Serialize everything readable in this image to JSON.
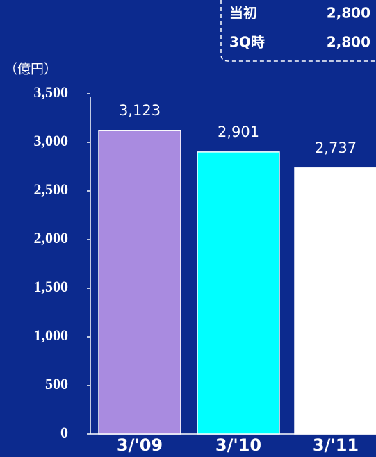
{
  "chart_data": {
    "type": "bar",
    "unit_label": "（億円）",
    "categories": [
      "3/'09",
      "3/'10",
      "3/'11"
    ],
    "values": [
      3123,
      2901,
      2737
    ],
    "value_labels": [
      "3,123",
      "2,901",
      "2,737"
    ],
    "colors": [
      "#a98be0",
      "#00ffff",
      "#ffffff"
    ],
    "ylim": [
      0,
      3500
    ],
    "yticks": [
      0,
      500,
      {
        "value": 1000,
        "label": "1,000"
      },
      {
        "value": 1500,
        "label": "1,500"
      },
      {
        "value": 2000,
        "label": "2,000"
      },
      {
        "value": 2500,
        "label": "2,500"
      },
      {
        "value": 3000,
        "label": "3,000"
      },
      {
        "value": 3500,
        "label": "3,500"
      }
    ],
    "annotation": [
      [
        "当初",
        "2,800"
      ],
      [
        "3Q時",
        "2,800"
      ]
    ]
  }
}
